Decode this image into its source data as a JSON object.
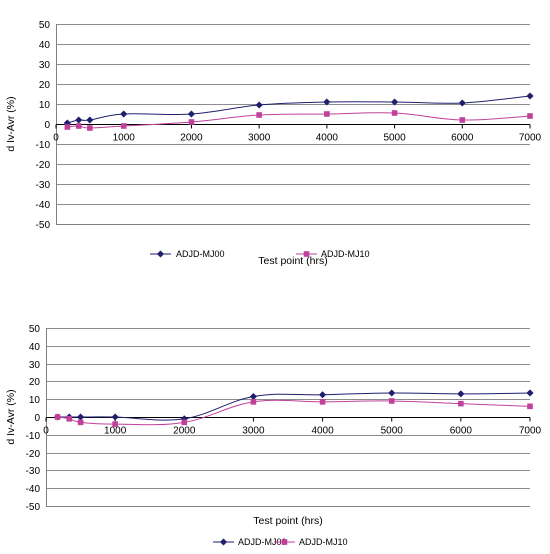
{
  "chart_data": [
    {
      "type": "line",
      "title": "",
      "xlabel": "Test point (hrs)",
      "ylabel": "d Iv-Avr (%)",
      "xlim": [
        0,
        7000
      ],
      "ylim": [
        -50,
        50
      ],
      "xticks": [
        0,
        1000,
        2000,
        3000,
        4000,
        5000,
        6000,
        7000
      ],
      "yticks": [
        50,
        40,
        30,
        20,
        10,
        0,
        -10,
        -20,
        -30,
        -40,
        -50
      ],
      "grid": true,
      "legend_position": "bottom",
      "series": [
        {
          "name": "ADJD-MJ00",
          "color": "#1f1f6e",
          "marker": "diamond",
          "x": [
            168,
            336,
            500,
            1000,
            2000,
            3000,
            4000,
            5000,
            6000,
            7000
          ],
          "y": [
            0.5,
            2,
            2,
            5,
            5,
            9.5,
            11,
            11,
            10.5,
            14
          ]
        },
        {
          "name": "ADJD-MJ10",
          "color": "#c0409a",
          "marker": "square",
          "x": [
            168,
            336,
            500,
            1000,
            2000,
            3000,
            4000,
            5000,
            6000,
            7000
          ],
          "y": [
            -1.5,
            -1,
            -2,
            -1,
            1,
            4.5,
            5,
            5.5,
            2,
            4
          ]
        }
      ]
    },
    {
      "type": "line",
      "title": "",
      "xlabel": "Test point (hrs)",
      "ylabel": "d Iv-Avr (%)",
      "xlim": [
        0,
        7000
      ],
      "ylim": [
        -50,
        50
      ],
      "xticks": [
        0,
        1000,
        2000,
        3000,
        4000,
        5000,
        6000,
        7000
      ],
      "yticks": [
        50,
        40,
        30,
        20,
        10,
        0,
        -10,
        -20,
        -30,
        -40,
        -50
      ],
      "grid": true,
      "legend_position": "bottom",
      "series": [
        {
          "name": "ADJD-MJ00",
          "color": "#1f1f6e",
          "marker": "diamond",
          "x": [
            168,
            336,
            500,
            1000,
            2000,
            3000,
            4000,
            5000,
            6000,
            7000
          ],
          "y": [
            0,
            0,
            0,
            0,
            -1,
            11.5,
            12.5,
            13.5,
            13,
            13.5
          ]
        },
        {
          "name": "ADJD-MJ10",
          "color": "#c0409a",
          "marker": "square",
          "x": [
            168,
            336,
            500,
            1000,
            2000,
            3000,
            4000,
            5000,
            6000,
            7000
          ],
          "y": [
            0,
            -1,
            -3,
            -4,
            -3,
            8.5,
            8.5,
            9,
            7.5,
            6
          ]
        }
      ]
    }
  ]
}
